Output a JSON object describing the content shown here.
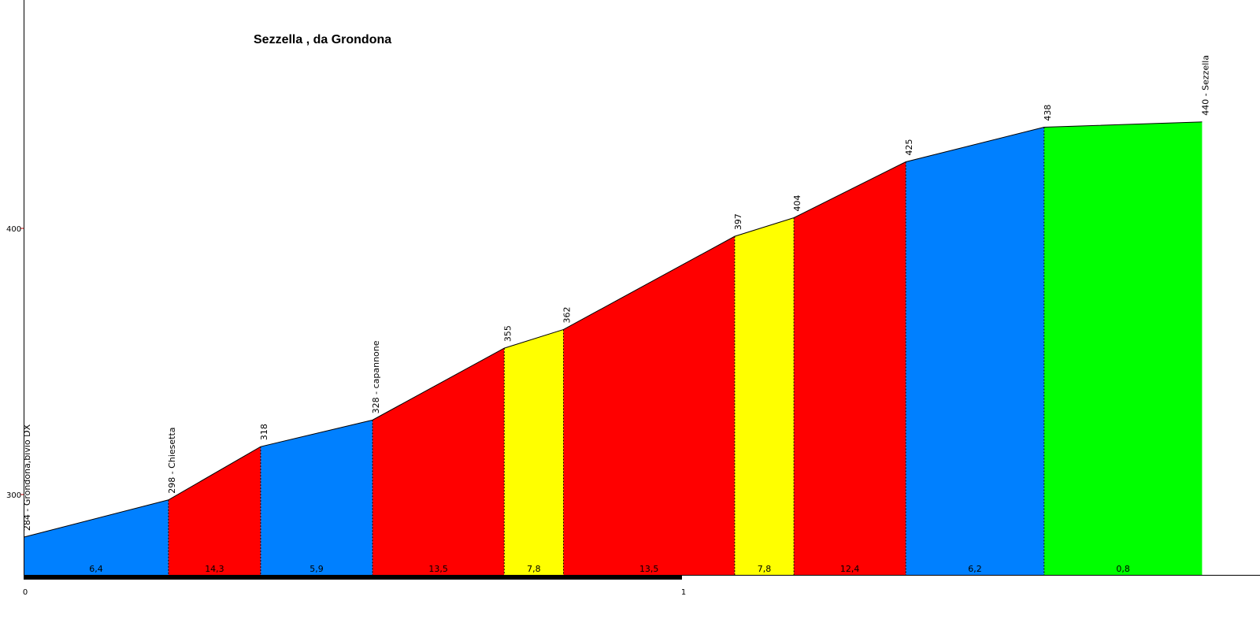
{
  "chart_data": {
    "type": "area",
    "title": "Sezzella , da Grondona",
    "xlabel": "",
    "ylabel": "",
    "x_ticks": [
      "0",
      "1"
    ],
    "y_ticks": [
      "300",
      "400"
    ],
    "xlim": [
      0,
      1.9
    ],
    "ylim": [
      270,
      480
    ],
    "grid": false,
    "legend": "none",
    "points": [
      {
        "x": 0.0,
        "y": 284,
        "label": "284 - Grondona,bivio DX"
      },
      {
        "x": 0.22,
        "y": 298,
        "label": "298 - Chiesetta"
      },
      {
        "x": 0.36,
        "y": 318,
        "label": "318"
      },
      {
        "x": 0.53,
        "y": 328,
        "label": "328 - capannone"
      },
      {
        "x": 0.73,
        "y": 355,
        "label": "355"
      },
      {
        "x": 0.82,
        "y": 362,
        "label": "362"
      },
      {
        "x": 1.08,
        "y": 397,
        "label": "397"
      },
      {
        "x": 1.17,
        "y": 404,
        "label": "404"
      },
      {
        "x": 1.34,
        "y": 425,
        "label": "425"
      },
      {
        "x": 1.55,
        "y": 438,
        "label": "438"
      },
      {
        "x": 1.79,
        "y": 440,
        "label": "440 - Sezzella"
      }
    ],
    "segments": [
      {
        "gradient": "6,4",
        "color": "#0080ff"
      },
      {
        "gradient": "14,3",
        "color": "#ff0000"
      },
      {
        "gradient": "5,9",
        "color": "#0080ff"
      },
      {
        "gradient": "13,5",
        "color": "#ff0000"
      },
      {
        "gradient": "7,8",
        "color": "#ffff00"
      },
      {
        "gradient": "13,5",
        "color": "#ff0000"
      },
      {
        "gradient": "7,8",
        "color": "#ffff00"
      },
      {
        "gradient": "12,4",
        "color": "#ff0000"
      },
      {
        "gradient": "6,2",
        "color": "#0080ff"
      },
      {
        "gradient": "0,8",
        "color": "#00ff00"
      }
    ]
  }
}
